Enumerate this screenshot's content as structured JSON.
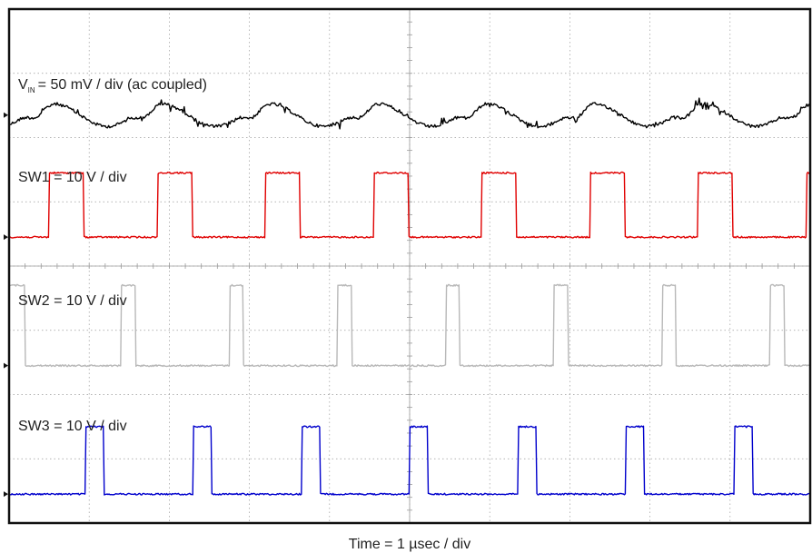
{
  "chart_data": {
    "type": "line",
    "title": "",
    "xlabel": "Time = 1 µsec / div",
    "grid": true,
    "x_divisions": 10,
    "y_divisions": 8,
    "series": [
      {
        "name_main": "V",
        "name_sub": "IN",
        "name_rest": "= 50 mV / div (ac coupled)",
        "color": "#000000",
        "kind": "ripple",
        "baseline_div": 1.65,
        "amplitude_div": 0.22,
        "period_div": 1.35,
        "phase_div": 0.55
      },
      {
        "name": "SW1 = 10 V / div",
        "color": "#e00000",
        "kind": "pulse",
        "baseline_div": 3.55,
        "high_div": 2.55,
        "period_div": 1.35,
        "first_edge_div": 0.5,
        "duty": 0.32
      },
      {
        "name": "SW2 = 10 V / div",
        "color": "#b8b8b8",
        "kind": "pulse",
        "baseline_div": 5.55,
        "high_div": 4.3,
        "period_div": 1.35,
        "first_edge_div": 1.4,
        "duty": 0.13,
        "prefix_level_div": 4.3,
        "prefix_end_div": 0.2
      },
      {
        "name": "SW3 = 10 V / div",
        "color": "#0000cc",
        "kind": "pulse",
        "baseline_div": 7.55,
        "high_div": 6.5,
        "period_div": 1.35,
        "first_edge_div": 0.95,
        "duty": 0.17
      }
    ]
  }
}
